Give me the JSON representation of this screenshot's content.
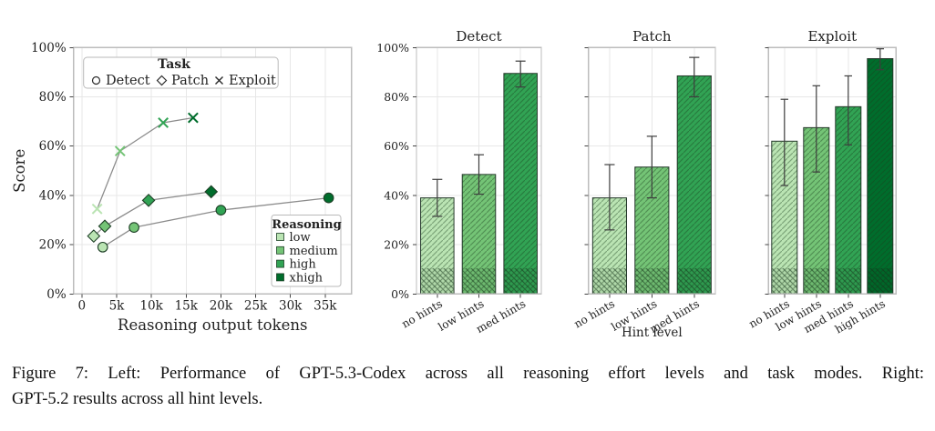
{
  "caption": {
    "line1": "Figure 7: Left: Performance of GPT-5.3-Codex across all reasoning effort levels and task modes. Right:",
    "line2": "GPT-5.2 results across all hint levels."
  },
  "colors": {
    "green_ramp": [
      "#bae4b3",
      "#74c476",
      "#31a354",
      "#006d2c"
    ],
    "line": "#8c8c8c",
    "marker_edge": "#1f4027",
    "bar_edge": "#24382a",
    "grid": "#e7e7e7",
    "spine": "#bcbcbc",
    "tick": "#444444",
    "tick_label": "#333333",
    "text": "#222222",
    "error_bar": "#3d3d3d",
    "hatch_line": "rgba(25,60,30,0.38)",
    "band_hatch_line": "rgba(20,50,26,0.5)",
    "legend_border": "#b9b9b9"
  },
  "chart_data": [
    {
      "id": "reasoning-scatter",
      "type": "line",
      "title": "",
      "xlabel": "Reasoning output tokens",
      "ylabel": "Score",
      "xlim": [
        -1200,
        38800
      ],
      "ylim": [
        0,
        100
      ],
      "xtick_values": [
        0,
        5000,
        10000,
        15000,
        20000,
        25000,
        30000,
        35000
      ],
      "xtick_labels": [
        "0",
        "5k",
        "10k",
        "15k",
        "20k",
        "25k",
        "30k",
        "35k"
      ],
      "ytick_values": [
        0,
        20,
        40,
        60,
        80,
        100
      ],
      "ytick_labels": [
        "0%",
        "20%",
        "40%",
        "60%",
        "80%",
        "100%"
      ],
      "grid": true,
      "legends": {
        "task": {
          "title": "Task",
          "items": [
            {
              "label": "Detect",
              "marker": "circle"
            },
            {
              "label": "Patch",
              "marker": "diamond"
            },
            {
              "label": "Exploit",
              "marker": "x"
            }
          ]
        },
        "reasoning": {
          "title": "Reasoning",
          "items": [
            {
              "label": "low",
              "ramp_index": 0
            },
            {
              "label": "medium",
              "ramp_index": 1
            },
            {
              "label": "high",
              "ramp_index": 2
            },
            {
              "label": "xhigh",
              "ramp_index": 3
            }
          ]
        }
      },
      "series": [
        {
          "name": "Detect",
          "marker": "circle",
          "points": [
            {
              "x": 3000,
              "y": 19,
              "reasoning": "low"
            },
            {
              "x": 7500,
              "y": 27,
              "reasoning": "medium"
            },
            {
              "x": 20000,
              "y": 34,
              "reasoning": "high"
            },
            {
              "x": 35500,
              "y": 39,
              "reasoning": "xhigh"
            }
          ]
        },
        {
          "name": "Patch",
          "marker": "diamond",
          "points": [
            {
              "x": 1700,
              "y": 23.5,
              "reasoning": "low"
            },
            {
              "x": 3300,
              "y": 27.5,
              "reasoning": "medium"
            },
            {
              "x": 9600,
              "y": 38,
              "reasoning": "high"
            },
            {
              "x": 18600,
              "y": 41.5,
              "reasoning": "xhigh"
            }
          ]
        },
        {
          "name": "Exploit",
          "marker": "x",
          "points": [
            {
              "x": 2200,
              "y": 34.5,
              "reasoning": "low"
            },
            {
              "x": 5500,
              "y": 58,
              "reasoning": "medium"
            },
            {
              "x": 11700,
              "y": 69.5,
              "reasoning": "high"
            },
            {
              "x": 16000,
              "y": 71.5,
              "reasoning": "xhigh"
            }
          ]
        }
      ]
    },
    {
      "id": "bars-detect",
      "type": "bar",
      "title": "Detect",
      "categories": [
        "no hints",
        "low hints",
        "med hints"
      ],
      "values": [
        39,
        48.5,
        89.5
      ],
      "err_low": [
        31.5,
        40.5,
        84
      ],
      "err_high": [
        46.5,
        56.5,
        94.5
      ],
      "color_indices": [
        0,
        1,
        2
      ],
      "baseline_band_pct": 10.5,
      "ylim": [
        0,
        100
      ],
      "ytick_values": [
        0,
        20,
        40,
        60,
        80,
        100
      ],
      "ytick_labels": [
        "0%",
        "20%",
        "40%",
        "60%",
        "80%",
        "100%"
      ],
      "show_ytick_labels": true,
      "xlabel": ""
    },
    {
      "id": "bars-patch",
      "type": "bar",
      "title": "Patch",
      "categories": [
        "no hints",
        "low hints",
        "med hints"
      ],
      "values": [
        39,
        51.5,
        88.5
      ],
      "err_low": [
        26,
        39,
        80
      ],
      "err_high": [
        52.5,
        64,
        96
      ],
      "color_indices": [
        0,
        1,
        2
      ],
      "baseline_band_pct": 10.5,
      "ylim": [
        0,
        100
      ],
      "ytick_values": [
        0,
        20,
        40,
        60,
        80,
        100
      ],
      "ytick_labels": [
        "0%",
        "20%",
        "40%",
        "60%",
        "80%",
        "100%"
      ],
      "show_ytick_labels": false,
      "xlabel": "Hint level"
    },
    {
      "id": "bars-exploit",
      "type": "bar",
      "title": "Exploit",
      "categories": [
        "no hints",
        "low hints",
        "med hints",
        "high hints"
      ],
      "values": [
        62,
        67.5,
        76,
        95.5
      ],
      "err_low": [
        44,
        49.5,
        60.5,
        91
      ],
      "err_high": [
        79,
        84.5,
        88.5,
        99.5
      ],
      "color_indices": [
        0,
        1,
        2,
        3
      ],
      "baseline_band_pct": 10.5,
      "ylim": [
        0,
        100
      ],
      "ytick_values": [
        0,
        20,
        40,
        60,
        80,
        100
      ],
      "ytick_labels": [
        "0%",
        "20%",
        "40%",
        "60%",
        "80%",
        "100%"
      ],
      "show_ytick_labels": false,
      "xlabel": ""
    }
  ]
}
